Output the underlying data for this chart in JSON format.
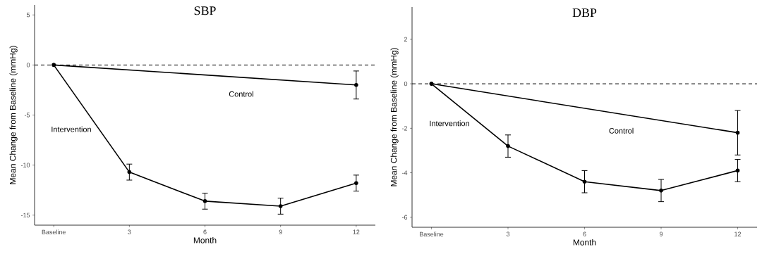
{
  "chart_data": [
    {
      "type": "line",
      "title": "SBP",
      "xlabel": "Month",
      "ylabel": "Mean Change from Baseline (mmHg)",
      "xlim": [
        -0.76,
        12.76
      ],
      "ylim": [
        -16,
        6
      ],
      "xticks": [
        {
          "value": 0,
          "label": "Baseline"
        },
        3,
        6,
        9,
        12
      ],
      "yticks": [
        -15,
        -10,
        -5,
        0,
        5
      ],
      "marker": "circle",
      "line_style": "solid",
      "series": [
        {
          "name": "Control",
          "color": "#000000",
          "x": [
            0,
            12
          ],
          "values": [
            0,
            -2.0
          ],
          "errors": [
            null,
            1.4
          ]
        },
        {
          "name": "Intervention",
          "color": "#000000",
          "x": [
            0,
            3,
            6,
            9,
            12
          ],
          "values": [
            0,
            -10.7,
            -13.6,
            -14.1,
            -11.8
          ],
          "errors": [
            null,
            0.8,
            0.8,
            0.8,
            0.8
          ]
        }
      ],
      "ref_lines": [
        {
          "axis": "y",
          "value": 0,
          "line_style": "dashed",
          "color": "#000000"
        }
      ]
    },
    {
      "type": "line",
      "title": "DBP",
      "xlabel": "Month",
      "ylabel": "Mean Change from Baseline (mmHg)",
      "xlim": [
        -0.76,
        12.76
      ],
      "ylim": [
        -6.45,
        3.45
      ],
      "xticks": [
        {
          "value": 0,
          "label": "Baseline"
        },
        3,
        6,
        9,
        12
      ],
      "yticks": [
        -6,
        -4,
        -2,
        0,
        2
      ],
      "marker": "circle",
      "line_style": "solid",
      "series": [
        {
          "name": "Control",
          "color": "#000000",
          "x": [
            0,
            12
          ],
          "values": [
            0,
            -2.2
          ],
          "errors": [
            null,
            1.0
          ]
        },
        {
          "name": "Intervention",
          "color": "#000000",
          "x": [
            0,
            3,
            6,
            9,
            12
          ],
          "values": [
            0,
            -2.8,
            -4.4,
            -4.8,
            -3.9
          ],
          "errors": [
            null,
            0.5,
            0.5,
            0.5,
            0.5
          ]
        }
      ],
      "ref_lines": [
        {
          "axis": "y",
          "value": 0,
          "line_style": "dashed",
          "color": "#000000"
        }
      ]
    }
  ]
}
